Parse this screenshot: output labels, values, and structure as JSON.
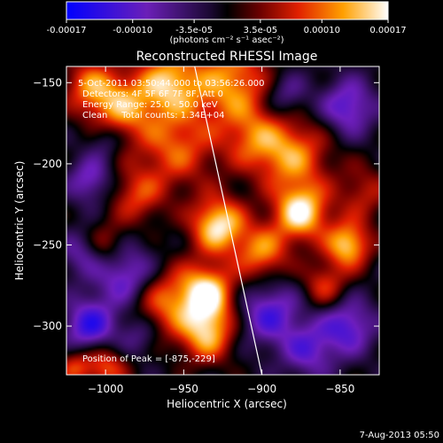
{
  "colorbar": {
    "ticks": [
      "-0.00017",
      "-0.00010",
      "-3.5e-05",
      "3.5e-05",
      "0.00010",
      "0.00017"
    ],
    "tick_values": [
      -0.00017,
      -0.0001,
      -3.5e-05,
      3.5e-05,
      0.0001,
      0.00017
    ],
    "range": [
      -0.00017,
      0.00017
    ],
    "unit_label": "(photons cm⁻² s⁻¹ asec⁻²)"
  },
  "chart_data": {
    "type": "heatmap",
    "title": "Reconstructed RHESSI Image",
    "xlabel": "Heliocentric X (arcsec)",
    "ylabel": "Heliocentric Y (arcsec)",
    "xlim": [
      -1025,
      -825
    ],
    "ylim": [
      -330,
      -140
    ],
    "xticks": [
      -1000,
      -950,
      -900,
      -850
    ],
    "yticks": [
      -150,
      -200,
      -250,
      -300
    ],
    "xtick_labels": [
      "−1000",
      "−950",
      "−900",
      "−850"
    ],
    "ytick_labels": [
      "−150",
      "−200",
      "−250",
      "−300"
    ],
    "peak": [
      -875,
      -229
    ],
    "limb_line": [
      [
        -943,
        -140
      ],
      [
        -900,
        -330
      ]
    ],
    "blobs": [
      {
        "x": -1010,
        "y": -152,
        "s": 12,
        "v": 0.6
      },
      {
        "x": -990,
        "y": -165,
        "s": 14,
        "v": 0.7
      },
      {
        "x": -960,
        "y": -150,
        "s": 14,
        "v": 0.8
      },
      {
        "x": -920,
        "y": -150,
        "s": 18,
        "v": 0.75
      },
      {
        "x": -905,
        "y": -185,
        "s": 14,
        "v": 0.5
      },
      {
        "x": -955,
        "y": -190,
        "s": 18,
        "v": 0.6
      },
      {
        "x": -928,
        "y": -238,
        "s": 12,
        "v": 1.0
      },
      {
        "x": -875,
        "y": -230,
        "s": 12,
        "v": 1.0
      },
      {
        "x": -880,
        "y": -195,
        "s": 16,
        "v": 0.7
      },
      {
        "x": -845,
        "y": -250,
        "s": 10,
        "v": 0.9
      },
      {
        "x": -835,
        "y": -218,
        "s": 12,
        "v": 0.4
      },
      {
        "x": -900,
        "y": -255,
        "s": 12,
        "v": 0.7
      },
      {
        "x": -935,
        "y": -280,
        "s": 12,
        "v": 1.0
      },
      {
        "x": -935,
        "y": -305,
        "s": 12,
        "v": 0.8
      },
      {
        "x": -965,
        "y": -285,
        "s": 16,
        "v": 0.7
      },
      {
        "x": -1000,
        "y": -250,
        "s": 10,
        "v": 0.4
      },
      {
        "x": -980,
        "y": -220,
        "s": 12,
        "v": 0.5
      },
      {
        "x": -1010,
        "y": -210,
        "s": 10,
        "v": -0.5
      },
      {
        "x": -1010,
        "y": -300,
        "s": 12,
        "v": -0.7
      },
      {
        "x": -1015,
        "y": -255,
        "s": 10,
        "v": -0.4
      },
      {
        "x": -985,
        "y": -270,
        "s": 14,
        "v": -0.7
      },
      {
        "x": -978,
        "y": -305,
        "s": 10,
        "v": -0.4
      },
      {
        "x": -895,
        "y": -292,
        "s": 14,
        "v": -0.6
      },
      {
        "x": -870,
        "y": -315,
        "s": 12,
        "v": -0.5
      },
      {
        "x": -845,
        "y": -300,
        "s": 12,
        "v": -0.6
      },
      {
        "x": -845,
        "y": -165,
        "s": 12,
        "v": -0.6
      },
      {
        "x": -885,
        "y": -158,
        "s": 10,
        "v": -0.4
      },
      {
        "x": -1000,
        "y": -185,
        "s": 8,
        "v": -0.3
      },
      {
        "x": -1020,
        "y": -325,
        "s": 8,
        "v": 0.5
      },
      {
        "x": -1000,
        "y": -325,
        "s": 10,
        "v": 0.6
      },
      {
        "x": -860,
        "y": -275,
        "s": 10,
        "v": 0.5
      }
    ]
  },
  "annotations": {
    "time": "5-Oct-2011 03:50:44.000 to 03:56:26.000",
    "detectors": "Detectors: 4F 5F 6F 7F 8F, Att 0",
    "energy": "Energy Range: 25.0 - 50.0 keV",
    "clean": "Clean     Total counts: 1.34E+04",
    "peak": "Position of Peak = [-875,-229]"
  },
  "footer": {
    "date": "7-Aug-2013 05:50"
  }
}
